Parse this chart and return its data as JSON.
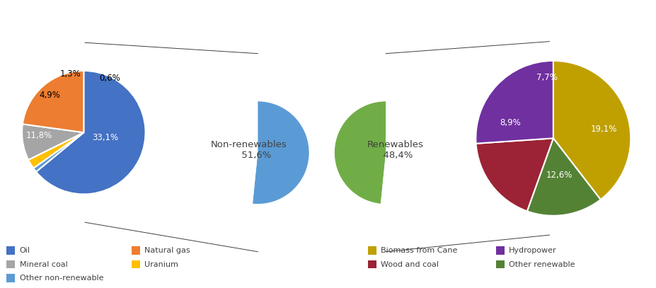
{
  "left_pie": {
    "values": [
      33.1,
      0.6,
      1.3,
      4.9,
      11.8
    ],
    "colors": [
      "#4472C4",
      "#5B9BD5",
      "#FFC000",
      "#A5A5A5",
      "#ED7D31"
    ],
    "label_texts": [
      "33,1%",
      "0,6%",
      "1,3%",
      "4,9%",
      "11,8%"
    ],
    "label_colors": [
      "white",
      "black",
      "black",
      "black",
      "white"
    ]
  },
  "middle_pie": {
    "non_renew_val": 51.6,
    "renew_val": 48.4,
    "color_non_renew": "#5B9BD5",
    "color_renew": "#70AD47",
    "label_non_renew": "Non-renewables\n51,6%",
    "label_renew": "Renewables\n48,4%"
  },
  "right_pie": {
    "values": [
      19.1,
      7.7,
      8.9,
      12.6
    ],
    "colors": [
      "#C0A000",
      "#548235",
      "#9B2335",
      "#7030A0"
    ],
    "label_texts": [
      "19,1%",
      "7,7%",
      "8,9%",
      "12,6%"
    ]
  },
  "legend_left": [
    {
      "label": "Oil",
      "color": "#4472C4"
    },
    {
      "label": "Mineral coal",
      "color": "#A5A5A5"
    },
    {
      "label": "Other non-renewable",
      "color": "#5B9BD5"
    },
    {
      "label": "Natural gas",
      "color": "#ED7D31"
    },
    {
      "label": "Uranium",
      "color": "#FFC000"
    }
  ],
  "legend_right": [
    {
      "label": "Biomass from Cane",
      "color": "#C0A000"
    },
    {
      "label": "Wood and coal",
      "color": "#9B2335"
    },
    {
      "label": "Hydropower",
      "color": "#7030A0"
    },
    {
      "label": "Other renewable",
      "color": "#548235"
    }
  ],
  "bg_color": "#FFFFFF",
  "label_fontsize": 8.5,
  "mid_label_fontsize": 9.5,
  "legend_fontsize": 8.0
}
